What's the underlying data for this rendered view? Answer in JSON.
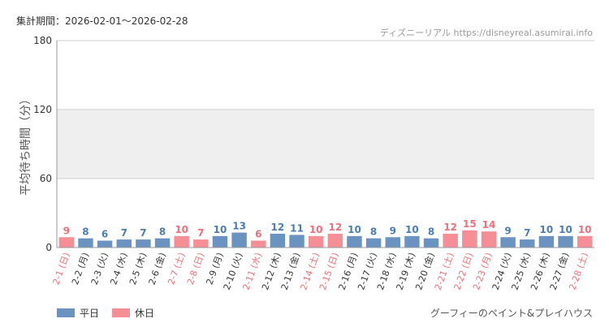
{
  "header": {
    "period_label": "集計期間：2026-02-01～2026-02-28",
    "source_text": "ディズニーリアル https://disneyreal.asumirai.info",
    "attraction": "グーフィーのペイント&プレイハウス"
  },
  "legend": {
    "weekday": "平日",
    "holiday": "休日"
  },
  "colors": {
    "weekday_bar": "#6b93c1",
    "holiday_bar": "#f58f95",
    "weekday_label": "#4a7db5",
    "holiday_label": "#ef6f78",
    "band": "#efefef",
    "grid": "#cccccc",
    "axis": "#999999"
  },
  "chart_data": {
    "type": "bar",
    "ylabel": "平均待ち時間（分）",
    "ylim": [
      0,
      180
    ],
    "yticks": [
      0,
      60,
      120,
      180
    ],
    "shaded_band": [
      60,
      120
    ],
    "categories": [
      "2-1 (日)",
      "2-2 (月)",
      "2-3 (火)",
      "2-4 (水)",
      "2-5 (木)",
      "2-6 (金)",
      "2-7 (土)",
      "2-8 (日)",
      "2-9 (月)",
      "2-10 (火)",
      "2-11 (水)",
      "2-12 (木)",
      "2-13 (金)",
      "2-14 (土)",
      "2-15 (日)",
      "2-16 (月)",
      "2-17 (火)",
      "2-18 (水)",
      "2-19 (木)",
      "2-20 (金)",
      "2-21 (土)",
      "2-22 (日)",
      "2-23 (月)",
      "2-24 (火)",
      "2-25 (水)",
      "2-26 (木)",
      "2-27 (金)",
      "2-28 (土)"
    ],
    "values": [
      9,
      8,
      6,
      7,
      7,
      8,
      10,
      7,
      10,
      13,
      6,
      12,
      11,
      10,
      12,
      10,
      8,
      9,
      10,
      8,
      12,
      15,
      14,
      9,
      7,
      10,
      10,
      10
    ],
    "holiday": [
      true,
      false,
      false,
      false,
      false,
      false,
      true,
      true,
      false,
      false,
      true,
      false,
      false,
      true,
      true,
      false,
      false,
      false,
      false,
      false,
      true,
      true,
      true,
      false,
      false,
      false,
      false,
      true
    ],
    "series": [
      {
        "name": "平日"
      },
      {
        "name": "休日"
      }
    ]
  }
}
